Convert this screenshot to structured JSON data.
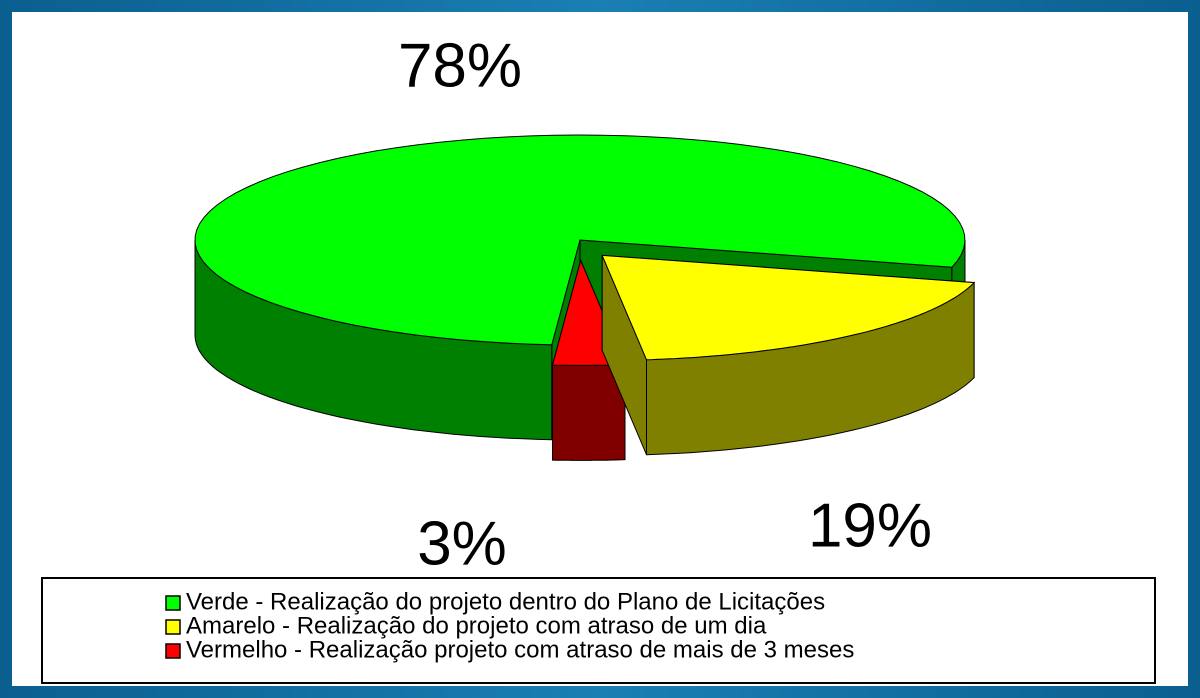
{
  "chart_data": {
    "type": "pie",
    "categories": [
      "Verde - Realização do projeto dentro do Plano de Licitações",
      "Amarelo - Realização do projeto com atraso de um dia",
      "Vermelho - Realização projeto com atraso de mais de 3 meses"
    ],
    "values": [
      78,
      19,
      3
    ],
    "value_labels": [
      "78%",
      "19%",
      "3%"
    ],
    "colors": [
      "#00ff00",
      "#ffff00",
      "#ff0000"
    ],
    "legend": "bottom"
  }
}
